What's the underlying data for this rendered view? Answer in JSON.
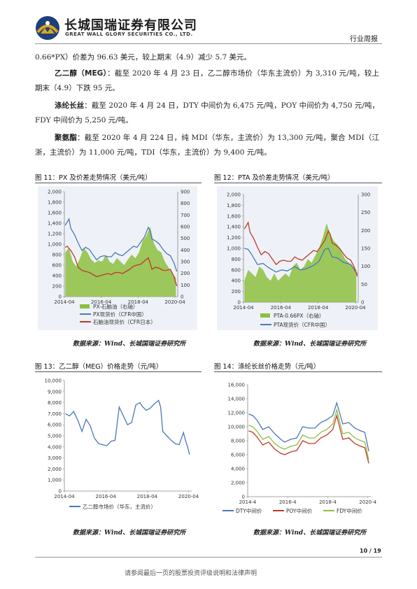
{
  "header": {
    "company_cn": "长城国瑞证券有限公司",
    "company_en": "GREAT WALL GLORY SECURITIES CO., LTD.",
    "report_type": "行业周报"
  },
  "paragraphs": [
    {
      "lead": "",
      "text": "0.66*PX）价差为 96.63 美元，较上期末（4.9）减少 5.7 美元。"
    },
    {
      "lead": "乙二醇（MEG）",
      "text": "：截至 2020 年 4 月 23 日，乙二醇市场价（华东主流价）为 3,310 元/吨，较上期末（4.9）下跌 95 元。"
    },
    {
      "lead": "涤纶长丝",
      "text": "：截至 2020 年 4 月 24 日，DTY 中间价为 6,475 元/吨，POY 中间价为 4,750 元/吨，FDY 中间价为 5,250 元/吨。"
    },
    {
      "lead": "聚氨酯",
      "text": "：截至 2020 年 4 月 224 日，纯 MDI（华东，主流价）为 13,300 元/吨，聚合 MDI（江浙，主流价）为 11,000 元/吨，TDI（华东，主流价）为 9,400 元/吨。"
    }
  ],
  "figures": {
    "fig11": {
      "caption": "图 11：PX 及价差走势情况（美元/吨）",
      "source": "数据来源：Wind、长城国瑞证券研究所"
    },
    "fig12": {
      "caption": "图 12：PTA 及价差走势情况（美元/吨）",
      "source": "数据来源：Wind、长城国瑞证券研究所"
    },
    "fig13": {
      "caption": "图 13：乙二醇（MEG）价格走势（元/吨）",
      "source": "数据来源：Wind、长城国瑞证券研究所"
    },
    "fig14": {
      "caption": "图 14：涤纶长丝价格走势（元/吨）",
      "source": "数据来源：Wind、长城国瑞证券研究所"
    }
  },
  "chart_data": [
    {
      "id": "fig11",
      "type": "line",
      "x_ticks": [
        "2014-04",
        "2016-04",
        "2018-04",
        "2020-04"
      ],
      "y_left_ticks": [
        "0",
        "200",
        "400",
        "600",
        "800",
        "1,000",
        "1,200",
        "1,400",
        "1,600",
        "1,800",
        "2,000"
      ],
      "y_right_ticks": [
        "0",
        "100",
        "200",
        "300",
        "400",
        "500",
        "600",
        "700",
        "800",
        "900"
      ],
      "ylim_left": [
        0,
        2000
      ],
      "ylim_right": [
        0,
        900
      ],
      "xlim": [
        2014.25,
        2020.4
      ],
      "series": [
        {
          "name": "PX-石脑油（右轴）",
          "kind": "area",
          "axis": "right",
          "color": "#8dc040",
          "x": [
            2014.3,
            2014.5,
            2014.7,
            2014.9,
            2015.1,
            2015.3,
            2015.5,
            2015.7,
            2015.9,
            2016.1,
            2016.3,
            2016.5,
            2016.7,
            2016.9,
            2017.1,
            2017.3,
            2017.5,
            2017.7,
            2017.9,
            2018.1,
            2018.3,
            2018.5,
            2018.7,
            2018.9,
            2019.1,
            2019.3,
            2019.5,
            2019.7,
            2019.9,
            2020.1,
            2020.3
          ],
          "y": [
            380,
            420,
            300,
            260,
            330,
            420,
            380,
            320,
            290,
            310,
            300,
            360,
            300,
            280,
            330,
            300,
            270,
            320,
            360,
            330,
            380,
            480,
            520,
            600,
            460,
            400,
            380,
            300,
            250,
            200,
            160
          ]
        },
        {
          "name": "PX现货价（CFR中国）",
          "kind": "line",
          "axis": "left",
          "color": "#4a78b8",
          "x": [
            2014.3,
            2014.4,
            2014.5,
            2014.6,
            2014.8,
            2015.0,
            2015.2,
            2015.4,
            2015.6,
            2015.8,
            2016.0,
            2016.2,
            2016.4,
            2016.6,
            2016.8,
            2017.0,
            2017.2,
            2017.4,
            2017.6,
            2017.8,
            2018.0,
            2018.2,
            2018.4,
            2018.6,
            2018.8,
            2018.9,
            2019.0,
            2019.2,
            2019.4,
            2019.6,
            2019.8,
            2020.0,
            2020.2,
            2020.35
          ],
          "y": [
            1360,
            1420,
            1480,
            1300,
            1180,
            1020,
            880,
            940,
            900,
            800,
            700,
            760,
            780,
            760,
            760,
            840,
            800,
            780,
            840,
            900,
            960,
            940,
            1040,
            1140,
            1320,
            1260,
            1100,
            1060,
            1000,
            900,
            820,
            780,
            640,
            480
          ]
        },
        {
          "name": "石脑油现货价（CFR日本）",
          "kind": "line",
          "axis": "left",
          "color": "#c0392b",
          "x": [
            2014.3,
            2014.4,
            2014.5,
            2014.6,
            2014.8,
            2015.0,
            2015.2,
            2015.4,
            2015.6,
            2015.8,
            2016.0,
            2016.2,
            2016.4,
            2016.6,
            2016.8,
            2017.0,
            2017.2,
            2017.4,
            2017.6,
            2017.8,
            2018.0,
            2018.2,
            2018.4,
            2018.6,
            2018.8,
            2018.9,
            2019.0,
            2019.2,
            2019.4,
            2019.6,
            2019.8,
            2020.0,
            2020.2,
            2020.35
          ],
          "y": [
            940,
            960,
            920,
            880,
            760,
            560,
            500,
            480,
            460,
            420,
            380,
            400,
            420,
            440,
            420,
            460,
            460,
            440,
            480,
            520,
            580,
            600,
            620,
            680,
            740,
            640,
            520,
            560,
            540,
            500,
            500,
            520,
            380,
            200
          ]
        }
      ],
      "legend": [
        "PX-石脑油（右轴）",
        "PX现货价（CFR中国）",
        "石脑油现货价（CFR日本）"
      ]
    },
    {
      "id": "fig12",
      "type": "line",
      "x_ticks": [
        "2014-04",
        "2016-04",
        "2018-04",
        "2020-04"
      ],
      "y_left_ticks": [
        "0",
        "200",
        "400",
        "600",
        "800",
        "1,000",
        "1,200",
        "1,400",
        "1,600",
        "1,800",
        "2,000"
      ],
      "y_right_ticks": [
        "0",
        "50",
        "100",
        "150",
        "200",
        "250",
        "300"
      ],
      "ylim_left": [
        0,
        2000
      ],
      "ylim_right": [
        0,
        300
      ],
      "xlim": [
        2014.25,
        2020.4
      ],
      "series": [
        {
          "name": "PTA-0.66PX（右轴）",
          "kind": "area",
          "axis": "right",
          "color": "#8dc040",
          "x": [
            2014.3,
            2014.5,
            2014.7,
            2014.9,
            2015.1,
            2015.3,
            2015.5,
            2015.7,
            2015.9,
            2016.1,
            2016.3,
            2016.5,
            2016.7,
            2016.9,
            2017.1,
            2017.3,
            2017.5,
            2017.7,
            2017.9,
            2018.1,
            2018.3,
            2018.5,
            2018.7,
            2018.9,
            2019.1,
            2019.3,
            2019.5,
            2019.7,
            2019.9,
            2020.1,
            2020.3
          ],
          "y": [
            60,
            90,
            80,
            70,
            100,
            90,
            70,
            60,
            80,
            60,
            70,
            80,
            70,
            100,
            110,
            90,
            100,
            120,
            110,
            130,
            150,
            180,
            220,
            190,
            170,
            160,
            140,
            120,
            110,
            100,
            90
          ]
        },
        {
          "name": "PTA现货价（CFR中国）",
          "kind": "line",
          "axis": "left",
          "color": "#4a78b8",
          "x": [
            2014.3,
            2014.5,
            2014.7,
            2015.0,
            2015.3,
            2015.6,
            2016.0,
            2016.3,
            2016.6,
            2017.0,
            2017.3,
            2017.6,
            2018.0,
            2018.3,
            2018.6,
            2018.8,
            2019.0,
            2019.3,
            2019.6,
            2020.0,
            2020.2,
            2020.35
          ],
          "y": [
            1000,
            980,
            880,
            700,
            720,
            640,
            560,
            600,
            580,
            660,
            600,
            620,
            680,
            760,
            980,
            1000,
            840,
            820,
            740,
            700,
            600,
            520
          ]
        },
        {
          "name": "PX",
          "kind": "line",
          "axis": "left",
          "color": "#c0392b",
          "x": [
            2014.3,
            2014.4,
            2014.5,
            2014.6,
            2014.8,
            2015.0,
            2015.2,
            2015.4,
            2015.6,
            2015.8,
            2016.0,
            2016.2,
            2016.4,
            2016.6,
            2016.8,
            2017.0,
            2017.2,
            2017.4,
            2017.6,
            2017.8,
            2018.0,
            2018.2,
            2018.4,
            2018.6,
            2018.8,
            2018.9,
            2019.0,
            2019.2,
            2019.4,
            2019.6,
            2019.8,
            2020.0,
            2020.2,
            2020.35
          ],
          "y": [
            1360,
            1420,
            1480,
            1300,
            1180,
            1020,
            880,
            940,
            900,
            800,
            700,
            760,
            780,
            760,
            760,
            840,
            800,
            780,
            840,
            900,
            960,
            940,
            1040,
            1140,
            1320,
            1260,
            1100,
            1060,
            1000,
            900,
            820,
            780,
            640,
            480
          ]
        }
      ],
      "legend": [
        "PTA-0.66PX（右轴）",
        "PTA现货价（CFR中国）"
      ]
    },
    {
      "id": "fig13",
      "type": "line",
      "x_ticks": [
        "2014-04",
        "2016-04",
        "2018-04",
        "2020-04"
      ],
      "y_left_ticks": [
        "0",
        "1,000",
        "2,000",
        "3,000",
        "4,000",
        "5,000",
        "6,000",
        "7,000",
        "8,000",
        "9,000",
        "10,000"
      ],
      "ylim_left": [
        0,
        10000
      ],
      "xlim": [
        2014.25,
        2020.4
      ],
      "series": [
        {
          "name": "乙二醇市场价（华东，主流价）",
          "kind": "line",
          "axis": "left",
          "color": "#4a78b8",
          "x": [
            2014.3,
            2014.5,
            2014.7,
            2014.9,
            2015.1,
            2015.3,
            2015.5,
            2015.7,
            2015.9,
            2016.1,
            2016.3,
            2016.5,
            2016.7,
            2016.9,
            2017.1,
            2017.3,
            2017.5,
            2017.7,
            2017.9,
            2018.0,
            2018.2,
            2018.4,
            2018.6,
            2018.8,
            2018.9,
            2019.0,
            2019.2,
            2019.4,
            2019.6,
            2019.8,
            2020.0,
            2020.1,
            2020.2,
            2020.3
          ],
          "y": [
            7000,
            6800,
            7200,
            6400,
            5400,
            6500,
            5900,
            4800,
            4300,
            4200,
            4100,
            4500,
            4600,
            7600,
            6800,
            6000,
            6200,
            7800,
            8000,
            7700,
            7300,
            7500,
            7900,
            8200,
            7600,
            5400,
            5000,
            4600,
            4300,
            4200,
            5300,
            4600,
            4000,
            3300
          ]
        }
      ],
      "legend": [
        "乙二醇市场价（华东，主流价）"
      ]
    },
    {
      "id": "fig14",
      "type": "line",
      "x_ticks": [
        "2014-4",
        "2016-4",
        "2018-4",
        "2020-4"
      ],
      "y_left_ticks": [
        "0",
        "2,000",
        "4,000",
        "6,000",
        "8,000",
        "10,000",
        "12,000",
        "14,000",
        "16,000"
      ],
      "ylim_left": [
        0,
        16000
      ],
      "xlim": [
        2014.25,
        2020.4
      ],
      "series": [
        {
          "name": "DTY中间价",
          "kind": "line",
          "axis": "left",
          "color": "#4a78b8",
          "x": [
            2014.3,
            2014.5,
            2014.7,
            2015.0,
            2015.3,
            2015.6,
            2015.9,
            2016.1,
            2016.4,
            2016.7,
            2017.0,
            2017.3,
            2017.6,
            2017.9,
            2018.2,
            2018.5,
            2018.7,
            2018.8,
            2019.0,
            2019.3,
            2019.6,
            2019.9,
            2020.1,
            2020.3
          ],
          "y": [
            11800,
            11600,
            11000,
            9600,
            10000,
            9000,
            8200,
            7800,
            8200,
            8400,
            10000,
            9800,
            9800,
            10600,
            11000,
            11600,
            13400,
            12400,
            10400,
            10600,
            9800,
            9400,
            9200,
            6500
          ]
        },
        {
          "name": "POY中间价",
          "kind": "line",
          "axis": "left",
          "color": "#c0392b",
          "x": [
            2014.3,
            2014.5,
            2014.7,
            2015.0,
            2015.3,
            2015.6,
            2015.9,
            2016.1,
            2016.4,
            2016.7,
            2017.0,
            2017.3,
            2017.6,
            2017.9,
            2018.2,
            2018.5,
            2018.7,
            2018.8,
            2019.0,
            2019.3,
            2019.6,
            2019.9,
            2020.1,
            2020.3
          ],
          "y": [
            9400,
            9200,
            8600,
            7400,
            7800,
            6800,
            6200,
            6000,
            6400,
            6600,
            8000,
            7600,
            7600,
            8400,
            8800,
            9600,
            11600,
            10400,
            8200,
            8400,
            7600,
            7200,
            7000,
            4750
          ]
        },
        {
          "name": "FDY中间价",
          "kind": "line",
          "axis": "left",
          "color": "#8dc040",
          "x": [
            2014.3,
            2014.5,
            2014.7,
            2015.0,
            2015.3,
            2015.6,
            2015.9,
            2016.1,
            2016.4,
            2016.7,
            2017.0,
            2017.3,
            2017.6,
            2017.9,
            2018.2,
            2018.5,
            2018.7,
            2018.8,
            2019.0,
            2019.3,
            2019.6,
            2019.9,
            2020.1,
            2020.3
          ],
          "y": [
            10200,
            10000,
            9400,
            8200,
            8600,
            7600,
            7000,
            6800,
            7200,
            7400,
            8800,
            8400,
            8400,
            9200,
            9600,
            10400,
            12400,
            11200,
            9000,
            9200,
            8400,
            8000,
            7800,
            5250
          ]
        }
      ],
      "legend": [
        "DTY中间价",
        "POY中间价",
        "FDY中间价"
      ]
    }
  ],
  "footer": {
    "page": "10 / 19",
    "disclaimer": "请参阅最后一页的股票投资评级说明和法律声明"
  }
}
